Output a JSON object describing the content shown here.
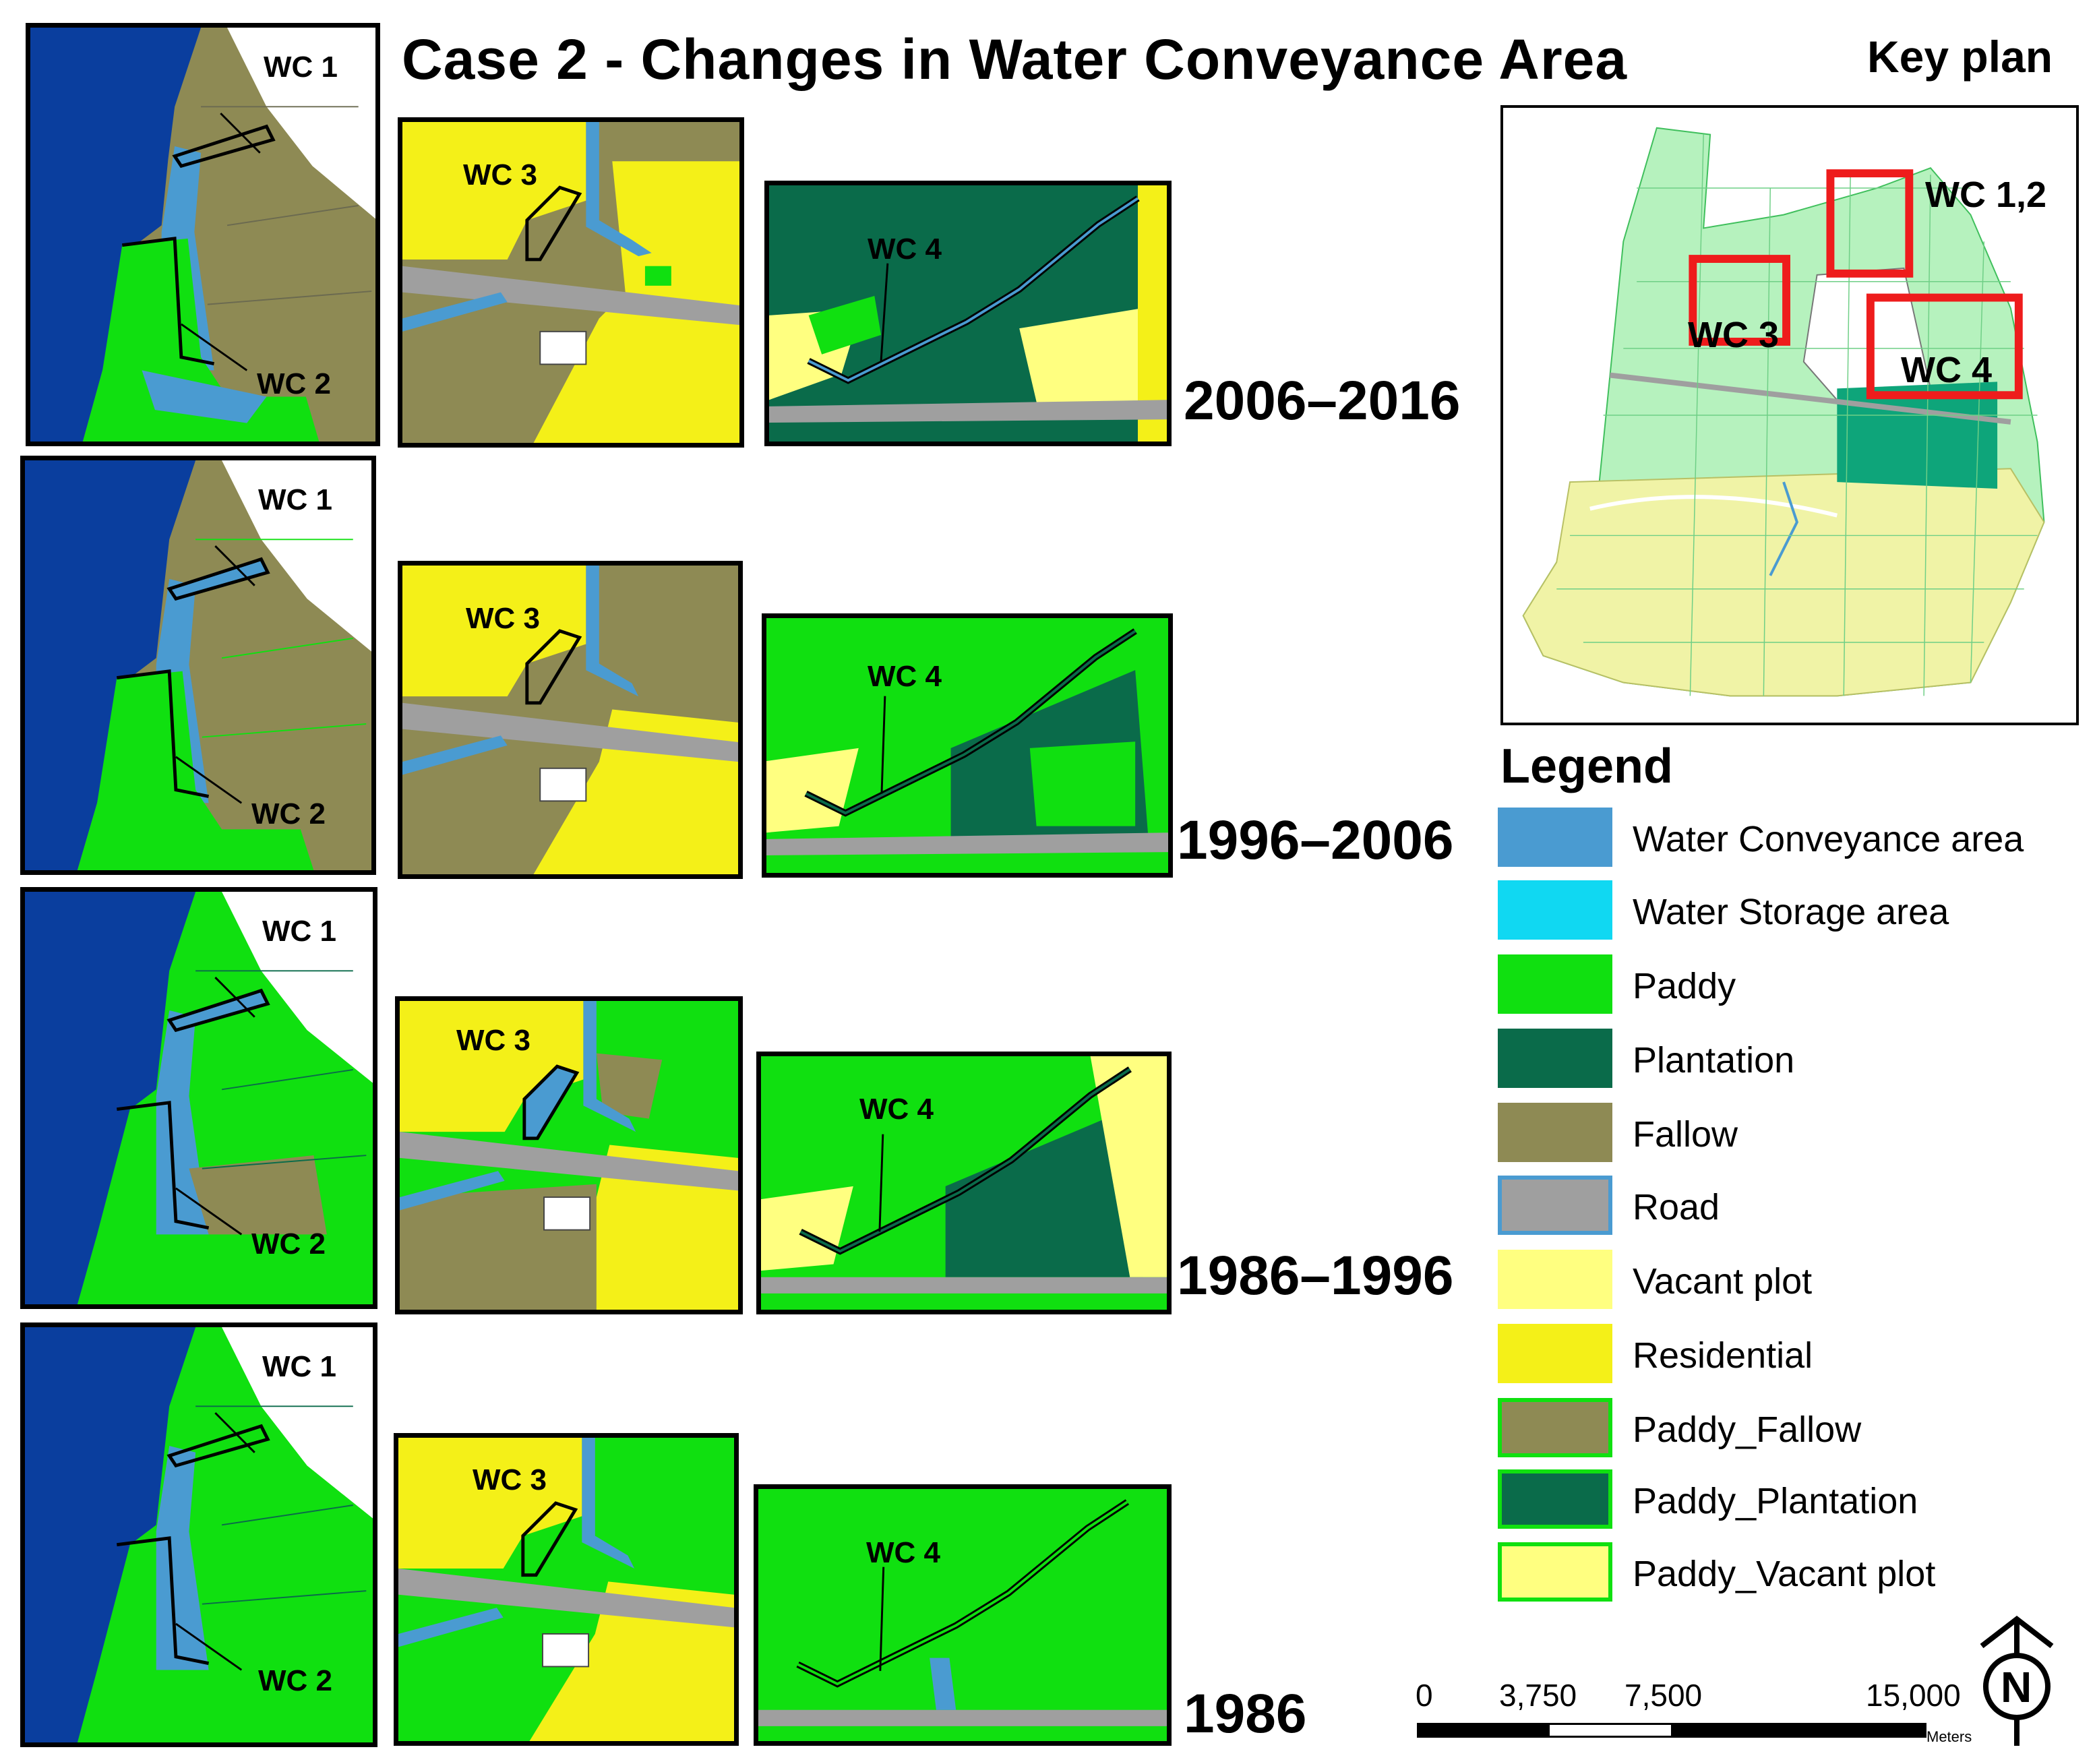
{
  "title": "Case 2 - Changes in Water Conveyance Area",
  "key_plan": {
    "title": "Key plan",
    "labels": [
      "WC 1,2",
      "WC 3",
      "WC 4"
    ]
  },
  "periods": [
    "2006–2016",
    "1996–2006",
    "1986–1996",
    "1986"
  ],
  "panel_labels": {
    "wc1": "WC 1",
    "wc2": "WC 2",
    "wc3": "WC 3",
    "wc4": "WC 4"
  },
  "legend": {
    "title": "Legend",
    "items": [
      {
        "label": "Water Conveyance area",
        "color": "#4a9bd1",
        "border": "#4a9bd1"
      },
      {
        "label": "Water Storage area",
        "color": "#10d8f2",
        "border": "#10d8f2"
      },
      {
        "label": "Paddy",
        "color": "#10e010",
        "border": "#10e010"
      },
      {
        "label": "Plantation",
        "color": "#0a6b4a",
        "border": "#0a6b4a"
      },
      {
        "label": "Fallow",
        "color": "#8e8a54",
        "border": "#8e8a54"
      },
      {
        "label": "Road",
        "color": "#9f9f9f",
        "border": "#4a9bd1"
      },
      {
        "label": "Vacant plot",
        "color": "#ffff80",
        "border": "#ffff80"
      },
      {
        "label": "Residential",
        "color": "#f4f018",
        "border": "#f4f018"
      },
      {
        "label": "Paddy_Fallow",
        "color": "#8e8a54",
        "border": "#10e010"
      },
      {
        "label": "Paddy_Plantation",
        "color": "#0a6b4a",
        "border": "#10e010"
      },
      {
        "label": "Paddy_Vacant plot",
        "color": "#ffff80",
        "border": "#10e010"
      }
    ]
  },
  "scale": {
    "ticks": [
      "0",
      "3,750",
      "7,500",
      "15,000"
    ],
    "units": "Meters"
  },
  "north_label": "N"
}
